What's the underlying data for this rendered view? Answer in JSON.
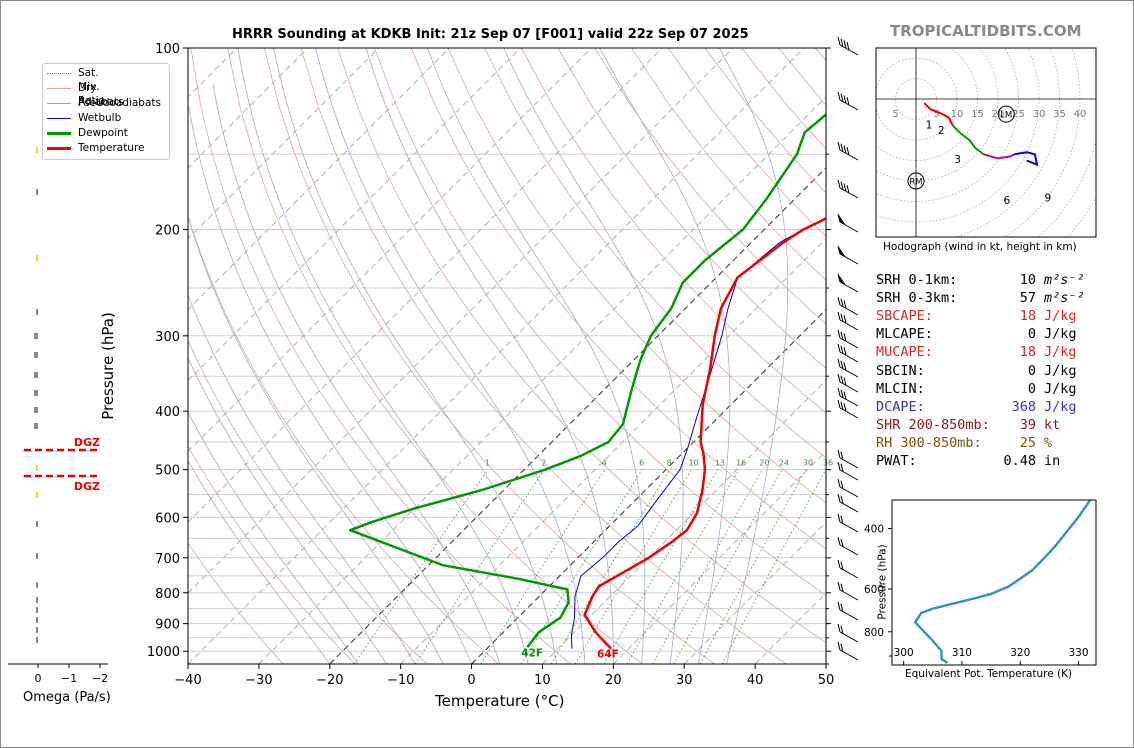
{
  "chart_data": [
    {
      "type": "line",
      "title": "HRRR Sounding at KDKB Init: 21z Sep 07 [F001] valid 22z Sep 07 2025",
      "xlabel": "Temperature (°C)",
      "ylabel": "Pressure (hPa)",
      "xlim": [
        -40,
        50
      ],
      "ylim": [
        1050,
        100
      ],
      "y_scale": "log",
      "x_ticks": [
        -40,
        -30,
        -20,
        -10,
        0,
        10,
        20,
        30,
        40,
        50
      ],
      "y_ticks": [
        100,
        200,
        300,
        400,
        500,
        600,
        700,
        800,
        900,
        1000
      ],
      "legend_position": "upper-left",
      "legend": [
        "Sat. Mix. Ratio",
        "Dry Adiabats",
        "Pseudoadiabats",
        "Wetbulb",
        "Dewpoint",
        "Temperature"
      ],
      "mixing_ratio_labels": [
        "1",
        "2",
        "4",
        "6",
        "8",
        "10",
        "13",
        "16",
        "20",
        "24",
        "30",
        "36"
      ],
      "surface_labels": {
        "temperature": "64F",
        "dewpoint": "42F"
      },
      "series": [
        {
          "name": "Temperature",
          "color": "#ee0000",
          "points": [
            [
              17.5,
              990
            ],
            [
              13,
              930
            ],
            [
              9,
              870
            ],
            [
              7.5,
              810
            ],
            [
              7,
              780
            ],
            [
              8.5,
              740
            ],
            [
              10,
              700
            ],
            [
              11,
              660
            ],
            [
              11.5,
              630
            ],
            [
              10.5,
              590
            ],
            [
              8,
              540
            ],
            [
              5.5,
              500
            ],
            [
              3,
              470
            ],
            [
              1,
              450
            ],
            [
              -4,
              390
            ],
            [
              -8,
              340
            ],
            [
              -12,
              300
            ],
            [
              -15,
              270
            ],
            [
              -17,
              240
            ],
            [
              -15.5,
              210
            ],
            [
              -14.5,
              200
            ],
            [
              -10,
              178
            ],
            [
              -7,
              168
            ],
            [
              -4,
              150
            ],
            [
              -2,
              140
            ],
            [
              -1,
              126
            ],
            [
              0,
              116
            ],
            [
              5,
              100
            ]
          ]
        },
        {
          "name": "Dewpoint",
          "color": "#009900",
          "points": [
            [
              5.5,
              985
            ],
            [
              5,
              930
            ],
            [
              6,
              880
            ],
            [
              5,
              830
            ],
            [
              3,
              790
            ],
            [
              -5,
              760
            ],
            [
              -18,
              720
            ],
            [
              -36,
              630
            ],
            [
              -34,
              610
            ],
            [
              -30,
              580
            ],
            [
              -23,
              540
            ],
            [
              -17,
              500
            ],
            [
              -14,
              475
            ],
            [
              -12,
              450
            ],
            [
              -12.5,
              420
            ],
            [
              -16,
              370
            ],
            [
              -19,
              330
            ],
            [
              -21,
              300
            ],
            [
              -22,
              270
            ],
            [
              -24,
              245
            ],
            [
              -24,
              225
            ],
            [
              -23,
              200
            ],
            [
              -24,
              178
            ],
            [
              -26,
              150
            ],
            [
              -28,
              138
            ],
            [
              -27,
              120
            ],
            [
              -24,
              100
            ]
          ]
        },
        {
          "name": "Wetbulb",
          "color": "#0000dd",
          "points": [
            [
              12,
              990
            ],
            [
              10,
              940
            ],
            [
              8,
              880
            ],
            [
              5,
              810
            ],
            [
              3,
              750
            ],
            [
              3.5,
              700
            ],
            [
              3.5,
              660
            ],
            [
              4,
              620
            ],
            [
              3,
              560
            ],
            [
              2,
              500
            ],
            [
              0,
              460
            ],
            [
              -3,
              410
            ],
            [
              -7,
              350
            ],
            [
              -11,
              300
            ],
            [
              -14,
              270
            ],
            [
              -17,
              240
            ],
            [
              -16,
              210
            ],
            [
              -14.5,
              200
            ],
            [
              -10,
              178
            ],
            [
              -7,
              168
            ],
            [
              -4,
              150
            ],
            [
              -2,
              140
            ],
            [
              -1.5,
              126
            ],
            [
              0,
              116
            ],
            [
              4.5,
              100
            ]
          ]
        }
      ]
    },
    {
      "type": "bar",
      "xlabel": "Omega (Pa/s)",
      "x_ticks": [
        "0",
        "−1",
        "−2"
      ],
      "annotations": [
        "DGZ",
        "DGZ"
      ]
    },
    {
      "type": "line",
      "title": "Hodograph (wind in kt, height in km)",
      "ring_labels": [
        "5",
        "5",
        "10",
        "15",
        "20",
        "25",
        "30",
        "35",
        "40"
      ],
      "markers": [
        "LM",
        "RM"
      ],
      "height_labels": [
        "1",
        "2",
        "3",
        "6",
        "9"
      ],
      "series": [
        {
          "name": "0-3 km",
          "color": "#ee0000",
          "points": [
            [
              2,
              -1
            ],
            [
              3.5,
              -2.5
            ],
            [
              6,
              -3.5
            ],
            [
              8,
              -4.5
            ],
            [
              9,
              -6.5
            ]
          ]
        },
        {
          "name": "3-6 km",
          "color": "#009900",
          "points": [
            [
              9,
              -6.5
            ],
            [
              11,
              -8.5
            ],
            [
              13,
              -10
            ],
            [
              14.5,
              -12
            ],
            [
              16.5,
              -13.5
            ]
          ]
        },
        {
          "name": "6-9 km",
          "color": "#bb00bb",
          "points": [
            [
              16.5,
              -13.5
            ],
            [
              20,
              -14.5
            ],
            [
              23,
              -14
            ],
            [
              24,
              -13.5
            ]
          ]
        },
        {
          "name": "9+ km",
          "color": "#0000ee",
          "points": [
            [
              24,
              -13.5
            ],
            [
              27,
              -13
            ],
            [
              29,
              -13.5
            ],
            [
              29.5,
              -16
            ],
            [
              27,
              -15
            ]
          ]
        }
      ]
    },
    {
      "type": "line",
      "xlabel": "Equivalent Pot. Temperature (K)",
      "ylabel": "Pressure (hPa)",
      "x_ticks": [
        "300",
        "310",
        "320",
        "330"
      ],
      "y_ticks": [
        "400",
        "600",
        "800"
      ],
      "xlim": [
        298,
        333
      ],
      "ylim": [
        1000,
        330
      ],
      "series": [
        {
          "name": "theta-e",
          "color": "#3399aa",
          "points": [
            [
              307.5,
              985
            ],
            [
              306.5,
              960
            ],
            [
              306.5,
              910
            ],
            [
              305,
              850
            ],
            [
              303.5,
              800
            ],
            [
              302,
              750
            ],
            [
              303,
              705
            ],
            [
              305,
              685
            ],
            [
              308,
              665
            ],
            [
              312,
              640
            ],
            [
              315,
              620
            ],
            [
              318,
              590
            ],
            [
              320,
              560
            ],
            [
              322,
              530
            ],
            [
              324,
              490
            ],
            [
              326,
              450
            ],
            [
              330,
              370
            ],
            [
              332,
              330
            ]
          ]
        }
      ]
    }
  ],
  "site": {
    "watermark": "TROPICALTIDBITS.COM"
  },
  "indices": [
    {
      "label": "SRH 0-1km:",
      "value": "10",
      "unit": "m²s⁻²",
      "color": "#000000"
    },
    {
      "label": "SRH 0-3km:",
      "value": "57",
      "unit": "m²s⁻²",
      "color": "#000000"
    },
    {
      "label": "SBCAPE:",
      "value": "18",
      "unit": "J/kg",
      "color": "#d62728"
    },
    {
      "label": "MLCAPE:",
      "value": "0",
      "unit": "J/kg",
      "color": "#000000"
    },
    {
      "label": "MUCAPE:",
      "value": "18",
      "unit": "J/kg",
      "color": "#d62728"
    },
    {
      "label": "SBCIN:",
      "value": "0",
      "unit": "J/kg",
      "color": "#000000"
    },
    {
      "label": "MLCIN:",
      "value": "0",
      "unit": "J/kg",
      "color": "#000000"
    },
    {
      "label": "DCAPE:",
      "value": "368",
      "unit": "J/kg",
      "color": "#3333cc"
    },
    {
      "label": "SHR 200-850mb:",
      "value": "39",
      "unit": "kt",
      "color": "#8b1a1a"
    },
    {
      "label": "RH 300-850mb:",
      "value": "25",
      "unit": "%",
      "color": "#7a5200"
    },
    {
      "label": "PWAT:",
      "value": "0.48",
      "unit": "in",
      "color": "#000000"
    }
  ]
}
